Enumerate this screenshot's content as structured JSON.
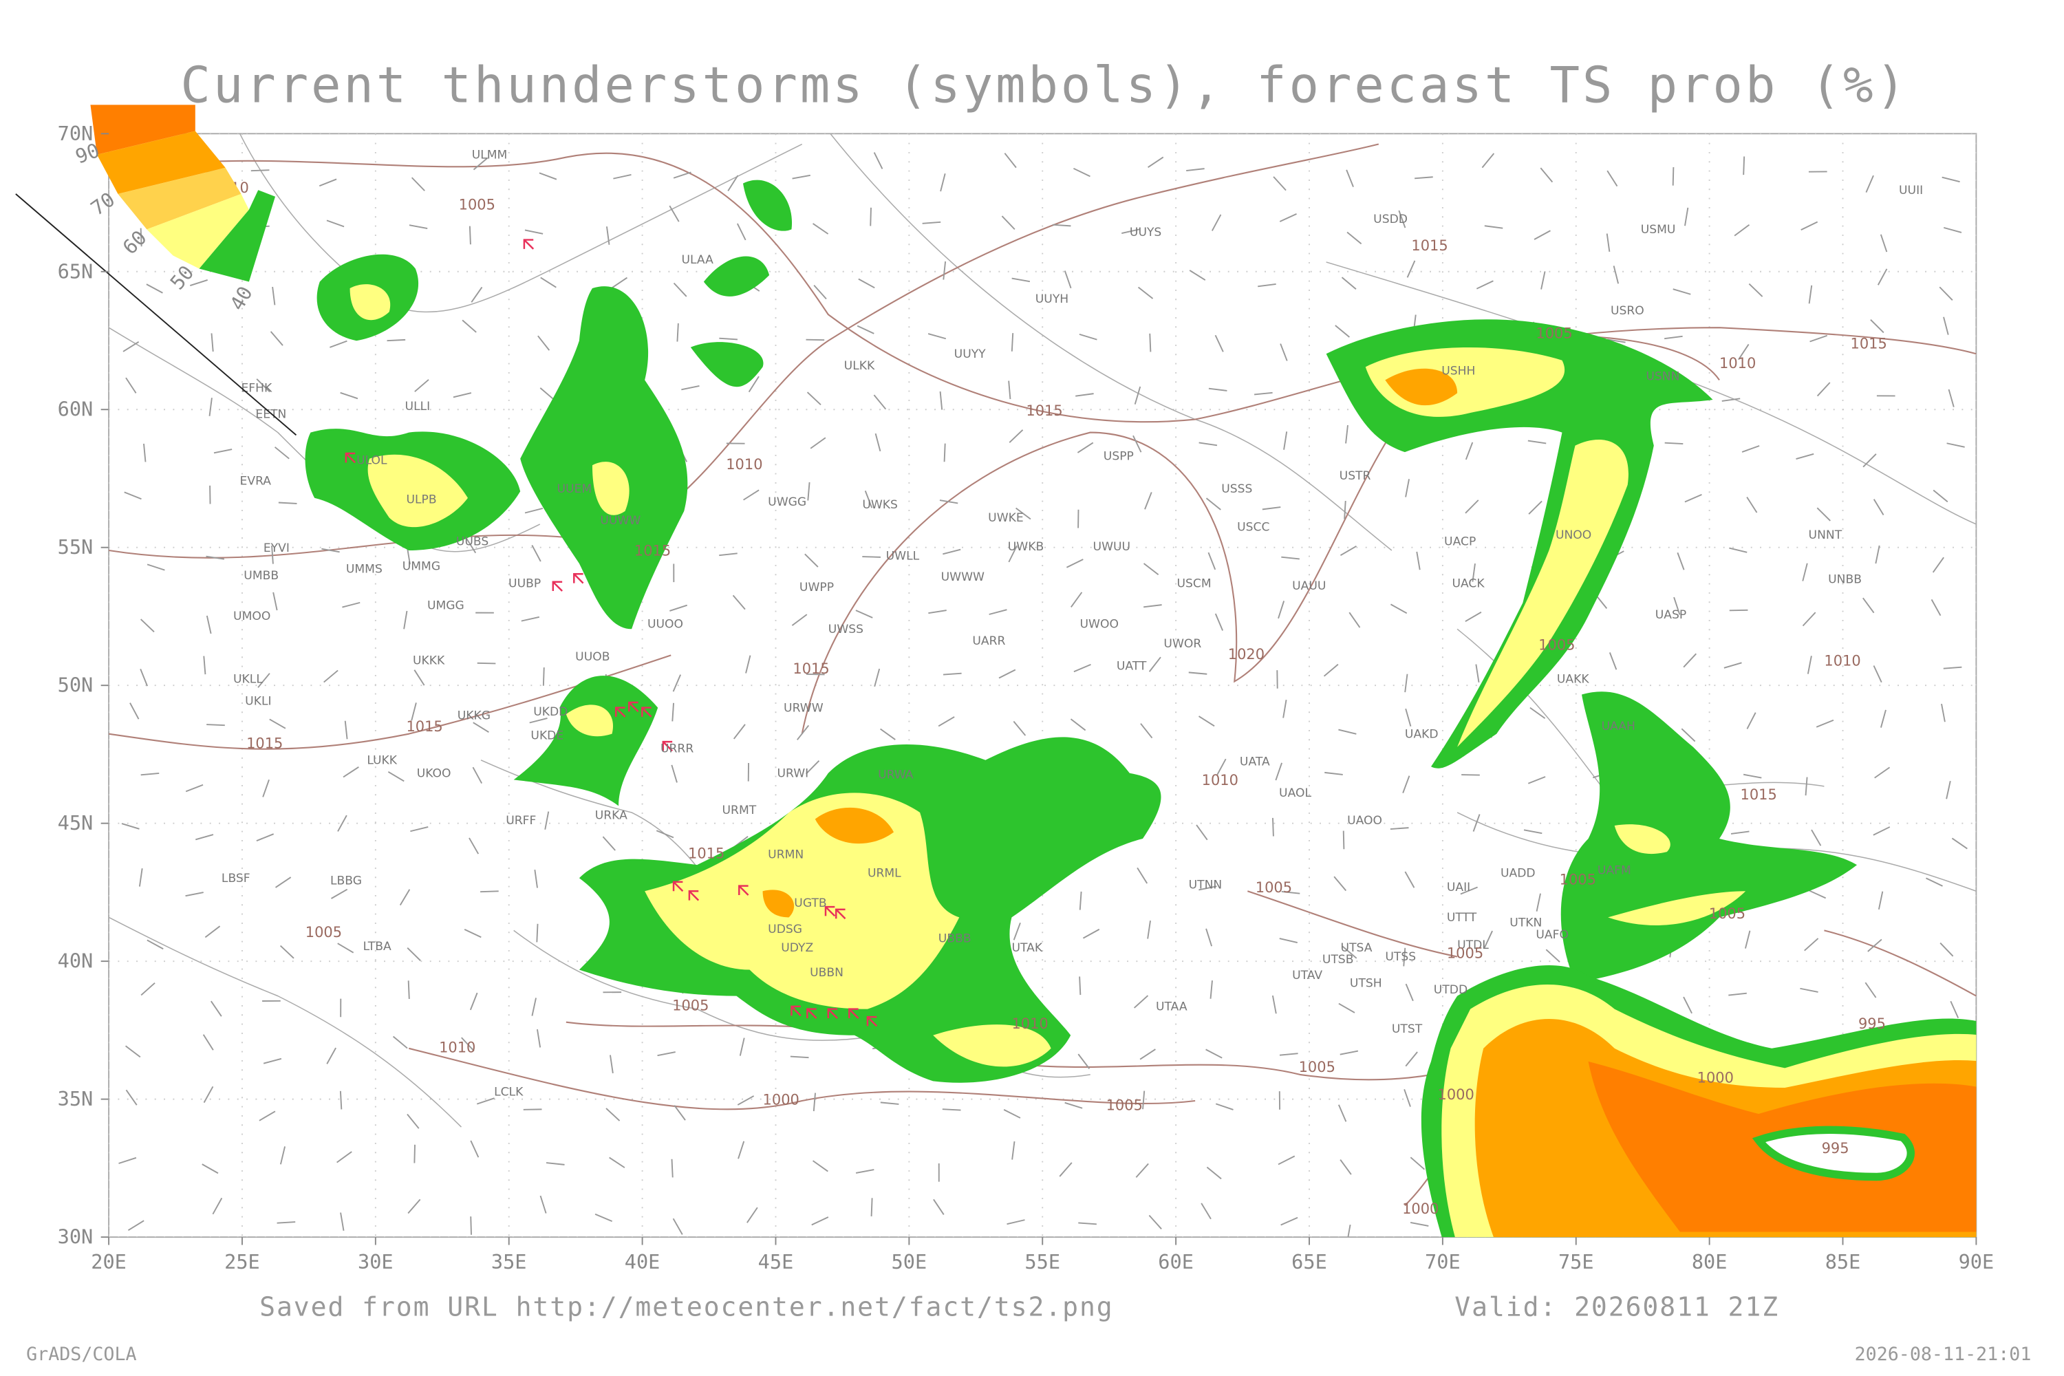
{
  "title": "Current thunderstorms (symbols), forecast TS prob (%)",
  "lat_ticks": [
    "70N",
    "65N",
    "60N",
    "55N",
    "50N",
    "45N",
    "40N",
    "35N",
    "30N"
  ],
  "lon_ticks": [
    "20E",
    "25E",
    "30E",
    "35E",
    "40E",
    "45E",
    "50E",
    "55E",
    "60E",
    "65E",
    "70E",
    "75E",
    "80E",
    "85E",
    "90E"
  ],
  "legend": [
    "90",
    "70",
    "60",
    "50",
    "40"
  ],
  "stations": [
    "ULMM",
    "ULDD",
    "UUYS",
    "ULAA",
    "UUYH",
    "UUYY",
    "ULKK",
    "UUII",
    "USDD",
    "USMU",
    "USRO",
    "USHH",
    "USNN",
    "USTR",
    "USSS",
    "USPP",
    "USCC",
    "UWKE",
    "UWKB",
    "UWUU",
    "UWGG",
    "UWKS",
    "UWLL",
    "UWWW",
    "UWPP",
    "UWSS",
    "UARR",
    "UWOO",
    "UWOR",
    "UATT",
    "USCM",
    "UAUU",
    "UACP",
    "UACK",
    "UNOO",
    "UNNT",
    "UNBB",
    "UASP",
    "UAKK",
    "UAKD",
    "UAAH",
    "UATA",
    "UAOL",
    "UAOO",
    "UADD",
    "UAFM",
    "UTAK",
    "UTNN",
    "UTAA",
    "UBBB",
    "URML",
    "URMN",
    "UGTB",
    "UDSG",
    "UDYZ",
    "UBBN",
    "URWW",
    "URWA",
    "URWI",
    "URMT",
    "URKA",
    "URRR",
    "UUOO",
    "UUOB",
    "UUBP",
    "UKKK",
    "UKLL",
    "UKLI",
    "UKKG",
    "UKDD",
    "UKDE",
    "UKOO",
    "URFF",
    "LUKK",
    "LBSF",
    "LBBG",
    "LTBA",
    "LCLK",
    "UMMS",
    "UMMG",
    "UMBB",
    "UMOO",
    "UMGG",
    "EYVI",
    "EVRA",
    "EETN",
    "EFHK",
    "ULLI",
    "ULOL",
    "ULPB",
    "UUEM",
    "UUWW",
    "UUBS",
    "UTSA",
    "UTSB",
    "UTSS",
    "UTAV",
    "UTSH",
    "UTDD",
    "UTST",
    "UTDL",
    "UTTT",
    "UAII",
    "UTKN",
    "UAFO"
  ],
  "isobar_labels": [
    "1005",
    "1010",
    "1015",
    "1015",
    "1010",
    "1005",
    "1010",
    "1015",
    "1010",
    "1015",
    "1005",
    "1010",
    "1015",
    "1015",
    "1015",
    "1005",
    "1020",
    "1015",
    "1015",
    "1010",
    "1005",
    "1000",
    "1005",
    "1005",
    "1005",
    "1005",
    "1005",
    "1005",
    "1000",
    "995",
    "995",
    "1000",
    "1000",
    "1010"
  ],
  "footer": {
    "source": "Saved from URL http://meteocenter.net/fact/ts2.png",
    "valid": "Valid: 20260811 21Z",
    "software": "GrADS/COLA",
    "timestamp": "2026-08-11-21:01"
  }
}
